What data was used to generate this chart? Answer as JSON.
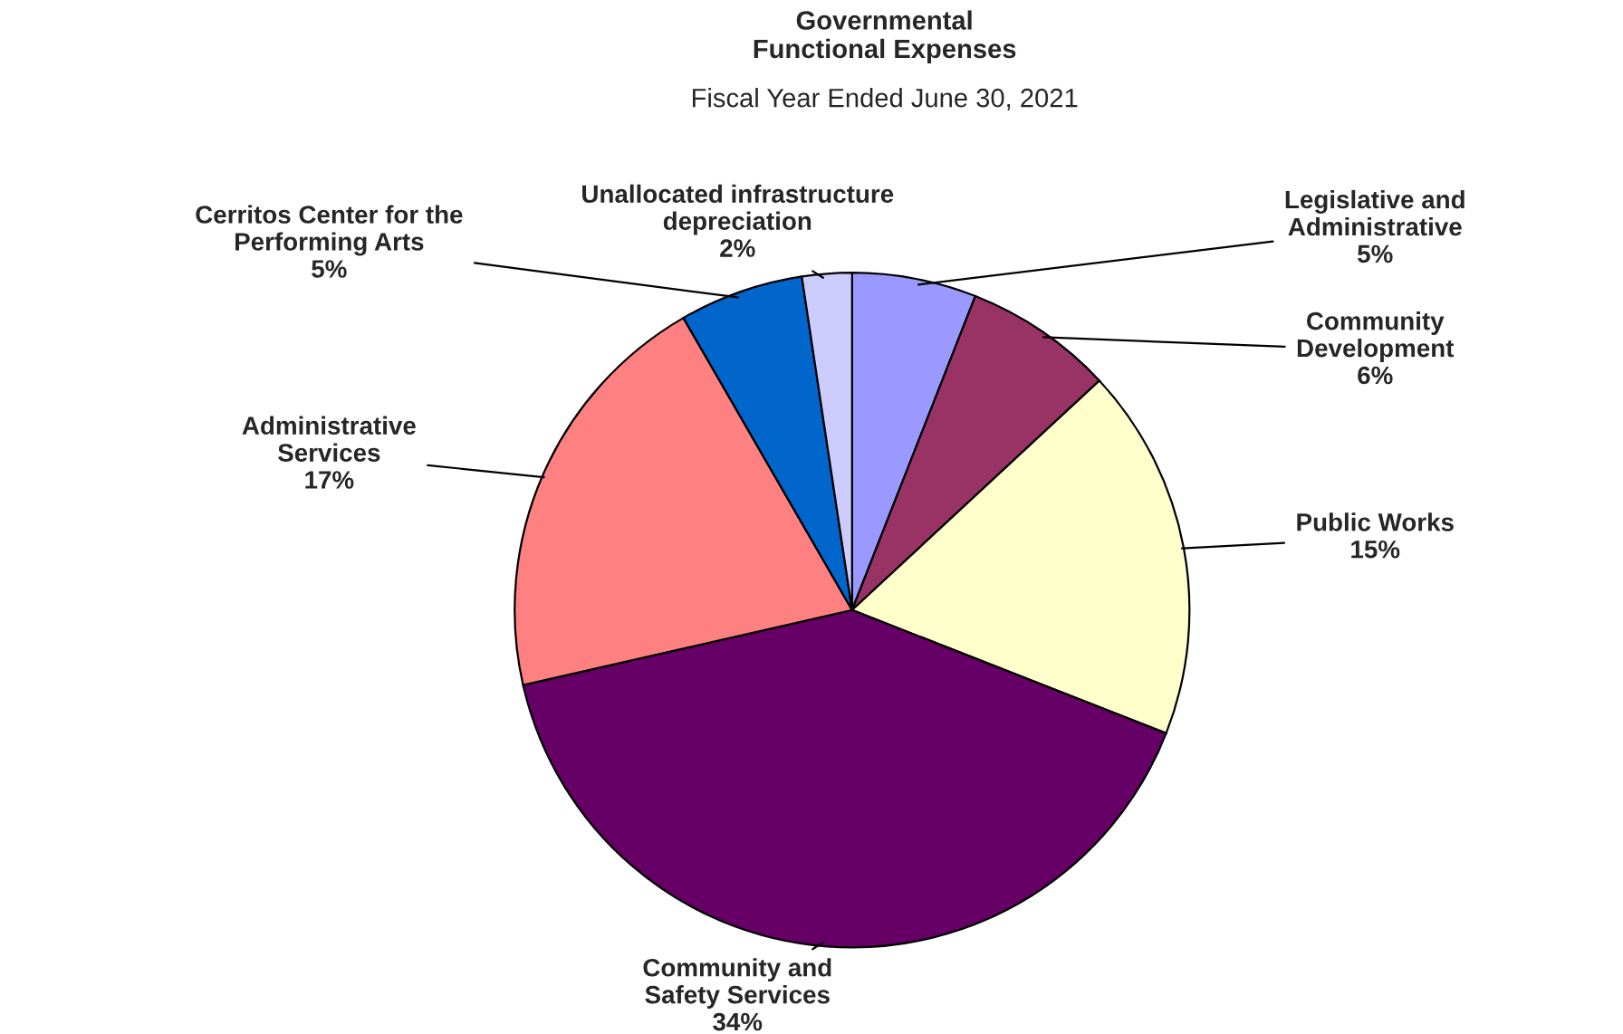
{
  "chart_data": {
    "type": "pie",
    "title": "Governmental\nFunctional Expenses",
    "subtitle": "Fiscal Year Ended June 30, 2021",
    "categories": [
      "Legislative and\nAdministrative",
      "Community\nDevelopment",
      "Public Works",
      "Community and\nSafety Services",
      "Administrative\nServices",
      "Cerritos Center for the\nPerforming Arts",
      "Unallocated infrastructure\ndepreciation"
    ],
    "values": [
      5,
      6,
      15,
      34,
      17,
      5,
      2
    ],
    "value_labels": [
      "5%",
      "6%",
      "15%",
      "34%",
      "17%",
      "5%",
      "2%"
    ],
    "colors": [
      "#9999ff",
      "#993366",
      "#ffffcc",
      "#660066",
      "#ff8080",
      "#0066cc",
      "#ccccff"
    ],
    "legend": false
  }
}
